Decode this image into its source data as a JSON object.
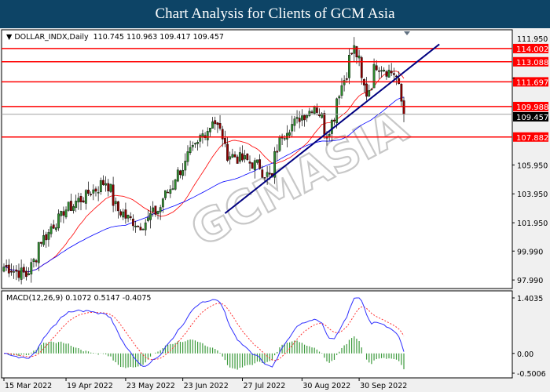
{
  "header": {
    "title": "Chart Analysis for Clients of GCM Asia"
  },
  "symbol_info": {
    "symbol": "DOLLAR_INDX,Daily",
    "open": "110.745",
    "high": "110.963",
    "low": "109.417",
    "close": "109.457"
  },
  "macd_info": {
    "label": "MACD(12,26,9)",
    "macd": "0.1072",
    "signal": "0.5147",
    "histogram": "-0.4075"
  },
  "watermark": "GCMASIA",
  "colors": {
    "header": "#0d4466",
    "level": "#ff0000",
    "trendline": "#000080",
    "ma_fast": "#ff0000",
    "ma_slow": "#0000ff",
    "bull": "#2e8b2e",
    "bear": "#8b0000",
    "hist": "#3c9a3c"
  },
  "chart_data": {
    "type": "candlestick",
    "price_axis": {
      "ylim": [
        97.4,
        115.3
      ],
      "ticks": [
        "105.950",
        "103.950",
        "101.950",
        "99.990",
        "97.990",
        "111.950"
      ]
    },
    "levels": [
      {
        "value": 114.002,
        "label": "114.002"
      },
      {
        "value": 113.088,
        "label": "113.088"
      },
      {
        "value": 111.697,
        "label": "111.697"
      },
      {
        "value": 109.988,
        "label": "109.988"
      },
      {
        "value": 107.882,
        "label": "107.882"
      }
    ],
    "current_price": {
      "value": 109.457,
      "label": "109.457"
    },
    "trendline": [
      {
        "date": "2022-07-18",
        "price": 102.6
      },
      {
        "date": "2022-11-15",
        "price": 114.3
      }
    ],
    "x_ticks": [
      "15 Mar 2022",
      "19 Apr 2022",
      "23 May 2022",
      "23 Jun 2022",
      "27 Jul 2022",
      "30 Aug 2022",
      "30 Sep 2022"
    ],
    "x_tick_dates": [
      "2022-03-15",
      "2022-04-19",
      "2022-05-23",
      "2022-06-23",
      "2022-07-27",
      "2022-08-30",
      "2022-09-30"
    ],
    "close_keypoints": [
      {
        "date": "2022-03-15",
        "close": 98.9
      },
      {
        "date": "2022-03-28",
        "close": 98.3
      },
      {
        "date": "2022-04-04",
        "close": 100.6
      },
      {
        "date": "2022-04-18",
        "close": 102.8
      },
      {
        "date": "2022-05-11",
        "close": 104.8
      },
      {
        "date": "2022-05-18",
        "close": 102.8
      },
      {
        "date": "2022-05-30",
        "close": 101.7
      },
      {
        "date": "2022-06-09",
        "close": 102.8
      },
      {
        "date": "2022-06-22",
        "close": 105.6
      },
      {
        "date": "2022-07-11",
        "close": 109.2
      },
      {
        "date": "2022-07-19",
        "close": 106.7
      },
      {
        "date": "2022-08-05",
        "close": 105.9
      },
      {
        "date": "2022-08-12",
        "close": 105.0
      },
      {
        "date": "2022-08-18",
        "close": 108.1
      },
      {
        "date": "2022-09-06",
        "close": 110.1
      },
      {
        "date": "2022-09-13",
        "close": 108.1
      },
      {
        "date": "2022-09-23",
        "close": 112.3
      },
      {
        "date": "2022-09-28",
        "close": 114.0
      },
      {
        "date": "2022-10-05",
        "close": 110.9
      },
      {
        "date": "2022-10-11",
        "close": 112.9
      },
      {
        "date": "2022-10-20",
        "close": 112.3
      },
      {
        "date": "2022-10-24",
        "close": 111.2
      },
      {
        "date": "2022-10-26",
        "close": 109.457
      }
    ],
    "macd_axis": {
      "ylim": [
        -0.5006,
        1.4035
      ],
      "ticks": [
        "1.4035",
        "0.00",
        "-0.5006"
      ]
    }
  }
}
